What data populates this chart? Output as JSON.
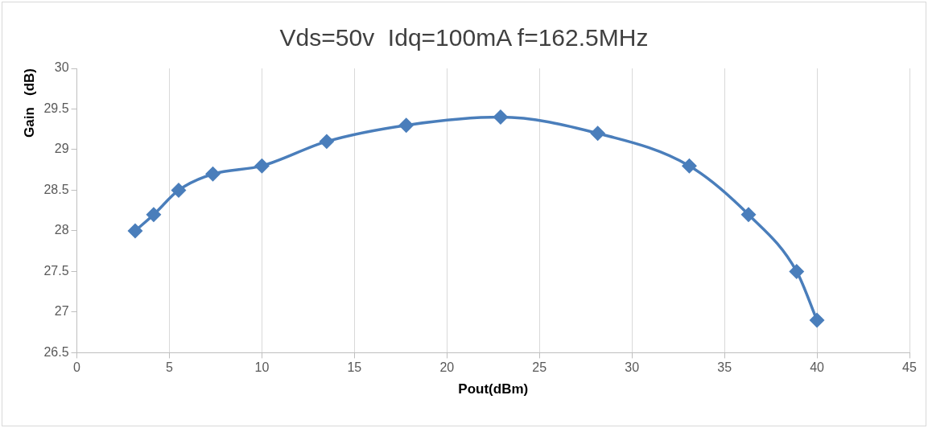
{
  "chart_data": {
    "type": "line",
    "title": "Vds=50v  Idq=100mA f=162.5MHz",
    "xlabel": "Pout(dBm)",
    "ylabel": "Gain   (dB)",
    "x": [
      3.15,
      4.15,
      5.5,
      7.35,
      10,
      13.5,
      17.8,
      22.9,
      28.15,
      33.1,
      36.3,
      38.9,
      40.0
    ],
    "series": [
      {
        "color": "#4a7ebb",
        "values": [
          28.0,
          28.2,
          28.5,
          28.7,
          28.8,
          29.1,
          29.3,
          29.4,
          29.2,
          28.8,
          28.2,
          27.5,
          26.9
        ]
      }
    ],
    "xlim": [
      0,
      45
    ],
    "xticks": [
      0,
      5,
      10,
      15,
      20,
      25,
      30,
      35,
      40,
      45
    ],
    "ylim": [
      26.5,
      30
    ],
    "yticks": [
      26.5,
      27,
      27.5,
      28,
      28.5,
      29,
      29.5,
      30
    ],
    "grid": "x",
    "legend": false,
    "marker": "diamond",
    "line_style": "solid"
  }
}
